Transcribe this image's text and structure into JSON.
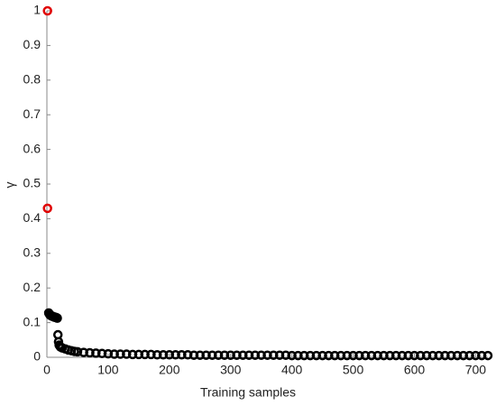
{
  "chart_data": {
    "type": "scatter",
    "xlabel": "Training samples",
    "ylabel": "γ",
    "xlim": [
      0,
      720
    ],
    "ylim": [
      0,
      1
    ],
    "xticks": [
      0,
      100,
      200,
      300,
      400,
      500,
      600,
      700
    ],
    "yticks": [
      0,
      0.1,
      0.2,
      0.3,
      0.4,
      0.5,
      0.6,
      0.7,
      0.8,
      0.9,
      1
    ],
    "series": [
      {
        "color": "#000000",
        "x": [
          3,
          4,
          5,
          6,
          7,
          8,
          9,
          10,
          11,
          12,
          13,
          14,
          15,
          16,
          17,
          18,
          19,
          20,
          22,
          25,
          30,
          35,
          40,
          45,
          50,
          60,
          70,
          80,
          90,
          100,
          110,
          120,
          130,
          140,
          150,
          160,
          170,
          180,
          190,
          200,
          210,
          220,
          230,
          240,
          250,
          260,
          270,
          280,
          290,
          300,
          310,
          320,
          330,
          340,
          350,
          360,
          370,
          380,
          390,
          400,
          410,
          420,
          430,
          440,
          450,
          460,
          470,
          480,
          490,
          500,
          510,
          520,
          530,
          540,
          550,
          560,
          570,
          580,
          590,
          600,
          610,
          620,
          630,
          640,
          650,
          660,
          670,
          680,
          690,
          700,
          710,
          720
        ],
        "values": [
          0.128,
          0.125,
          0.122,
          0.121,
          0.12,
          0.119,
          0.118,
          0.118,
          0.117,
          0.116,
          0.116,
          0.115,
          0.115,
          0.114,
          0.113,
          0.065,
          0.045,
          0.035,
          0.03,
          0.027,
          0.024,
          0.021,
          0.019,
          0.017,
          0.016,
          0.014,
          0.013,
          0.012,
          0.011,
          0.01,
          0.009,
          0.009,
          0.009,
          0.008,
          0.008,
          0.008,
          0.008,
          0.007,
          0.007,
          0.007,
          0.007,
          0.007,
          0.007,
          0.006,
          0.006,
          0.006,
          0.006,
          0.006,
          0.006,
          0.006,
          0.006,
          0.006,
          0.006,
          0.006,
          0.006,
          0.006,
          0.006,
          0.006,
          0.006,
          0.005,
          0.005,
          0.005,
          0.005,
          0.005,
          0.005,
          0.005,
          0.005,
          0.005,
          0.005,
          0.005,
          0.005,
          0.005,
          0.005,
          0.005,
          0.005,
          0.005,
          0.005,
          0.005,
          0.005,
          0.005,
          0.005,
          0.005,
          0.005,
          0.005,
          0.005,
          0.005,
          0.005,
          0.005,
          0.005,
          0.005,
          0.005,
          0.005
        ]
      },
      {
        "color": "#e00000",
        "x": [
          1,
          1
        ],
        "values": [
          1,
          0.43
        ]
      }
    ]
  }
}
